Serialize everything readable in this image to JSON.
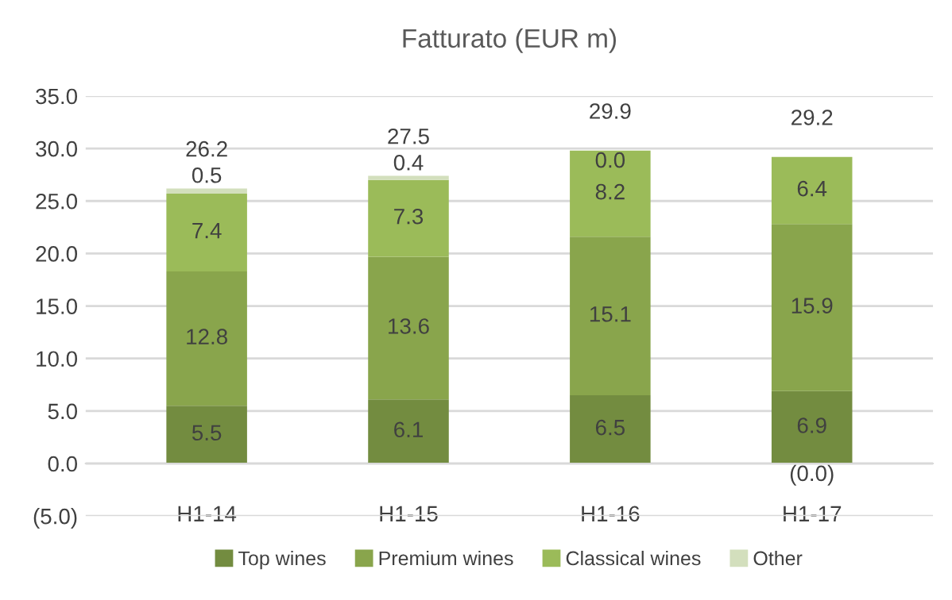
{
  "chart_data": {
    "type": "bar",
    "stacked": true,
    "title": "Fatturato (EUR m)",
    "categories": [
      "H1-14",
      "H1-15",
      "H1-16",
      "H1-17"
    ],
    "series": [
      {
        "name": "Top wines",
        "color": "#738c40",
        "values": [
          5.5,
          6.1,
          6.5,
          6.9
        ],
        "value_labels": [
          "5.5",
          "6.1",
          "6.5",
          "6.9"
        ]
      },
      {
        "name": "Premium wines",
        "color": "#89a54c",
        "values": [
          12.8,
          13.6,
          15.1,
          15.9
        ],
        "value_labels": [
          "12.8",
          "13.6",
          "15.1",
          "15.9"
        ]
      },
      {
        "name": "Classical wines",
        "color": "#9bbb59",
        "values": [
          7.4,
          7.3,
          8.2,
          6.4
        ],
        "value_labels": [
          "7.4",
          "7.3",
          "8.2",
          "6.4"
        ]
      },
      {
        "name": "Other",
        "color": "#d3dfbd",
        "values": [
          0.5,
          0.4,
          0.0,
          -0.04
        ],
        "value_labels": [
          "0.5",
          "0.4",
          "0.0",
          "(0.0)"
        ]
      }
    ],
    "totals": [
      "26.2",
      "27.5",
      "29.9",
      "29.2"
    ],
    "ylim": [
      -5,
      35
    ],
    "yticks": [
      {
        "value": -5,
        "label": "(5.0)"
      },
      {
        "value": 0,
        "label": "0.0"
      },
      {
        "value": 5,
        "label": "5.0"
      },
      {
        "value": 10,
        "label": "10.0"
      },
      {
        "value": 15,
        "label": "15.0"
      },
      {
        "value": 20,
        "label": "20.0"
      },
      {
        "value": 25,
        "label": "25.0"
      },
      {
        "value": 30,
        "label": "30.0"
      },
      {
        "value": 35,
        "label": "35.0"
      }
    ],
    "grid": "y",
    "legend": "bottom"
  }
}
